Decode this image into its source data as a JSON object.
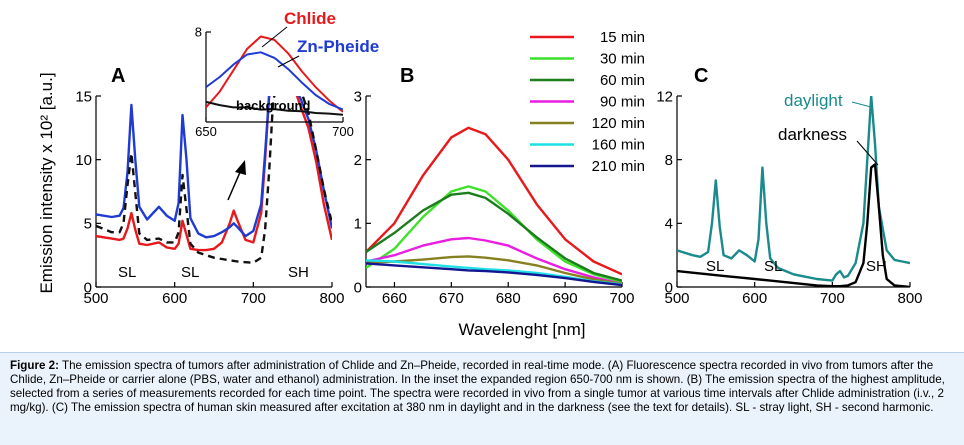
{
  "ylabel": "Emission intensity x 10² [a.u.]",
  "xlabel": "Wavelenght [nm]",
  "caption": {
    "label": "Figure 2:",
    "text": "The emission spectra of tumors after administration of Chlide and Zn–Pheide, recorded in real-time mode. (A) Fluorescence spectra recorded in vivo from tumors after the Chlide, Zn–Pheide or carrier alone (PBS, water and ethanol) administration. In the inset the expanded region 650-700 nm is shown. (B) The emission spectra of the highest amplitude, selected from a series of measurements recorded for each time point. The spectra were recorded in vivo from a single tumor at various time intervals after Chlide administration (i.v., 2 mg/kg). (C) The emission spectra of human skin measured after excitation at 380 nm in daylight and in the darkness (see the text for details). SL - stray light, SH - second harmonic."
  },
  "chart_data": [
    {
      "panel": "A",
      "type": "line",
      "xlim": [
        500,
        800
      ],
      "ylim": [
        0,
        15
      ],
      "xticks": [
        500,
        600,
        700,
        800
      ],
      "yticks": [
        0,
        5,
        10,
        15
      ],
      "annotations": [
        "SL",
        "SL",
        "SH"
      ],
      "series": [
        {
          "name": "Chlide",
          "color": "#e8191c",
          "style": "solid",
          "x": [
            500,
            520,
            530,
            535,
            540,
            545,
            550,
            555,
            565,
            580,
            590,
            600,
            605,
            610,
            615,
            620,
            630,
            640,
            650,
            660,
            670,
            675,
            680,
            690,
            700,
            710,
            715,
            720,
            725,
            730,
            740,
            750,
            760,
            770,
            780,
            790,
            800
          ],
          "y": [
            4.0,
            3.8,
            3.7,
            3.8,
            4.6,
            5.8,
            4.5,
            3.4,
            3.3,
            3.5,
            3.1,
            3.0,
            3.4,
            5.2,
            4.1,
            3.0,
            2.9,
            2.9,
            3.0,
            3.5,
            5.0,
            6.0,
            5.2,
            3.7,
            3.5,
            5.8,
            10,
            15,
            16,
            16,
            16,
            16,
            14.2,
            12.5,
            9.8,
            6.4,
            3.7
          ]
        },
        {
          "name": "Zn-Pheide",
          "color": "#1f3bd1",
          "style": "solid",
          "x": [
            500,
            520,
            530,
            535,
            540,
            545,
            550,
            555,
            565,
            580,
            590,
            600,
            605,
            610,
            615,
            620,
            630,
            640,
            650,
            660,
            670,
            675,
            680,
            690,
            700,
            710,
            715,
            720,
            725,
            730,
            740,
            750,
            760,
            770,
            780,
            790,
            800
          ],
          "y": [
            5.7,
            5.5,
            5.6,
            6.2,
            9.0,
            14.3,
            10.0,
            6.3,
            5.3,
            6.3,
            5.6,
            5.2,
            6.6,
            13.5,
            10.0,
            5.4,
            4.2,
            3.9,
            4.0,
            4.3,
            4.7,
            5.0,
            4.7,
            4.0,
            4.4,
            6.5,
            10.5,
            15,
            16,
            16,
            16,
            16,
            14.8,
            13.2,
            10.7,
            7.5,
            4.6
          ]
        },
        {
          "name": "background",
          "color": "#111111",
          "style": "dashed",
          "x": [
            500,
            520,
            530,
            535,
            540,
            545,
            550,
            555,
            565,
            580,
            590,
            600,
            605,
            610,
            615,
            620,
            630,
            640,
            650,
            660,
            670,
            680,
            690,
            700,
            710,
            715,
            720,
            725,
            730,
            740,
            750,
            760,
            770,
            780,
            790,
            800
          ],
          "y": [
            4.8,
            4.3,
            4.3,
            5.0,
            8.0,
            10.5,
            7.4,
            4.2,
            3.7,
            3.8,
            3.5,
            3.5,
            4.3,
            8.8,
            6.1,
            3.4,
            2.7,
            2.5,
            2.3,
            2.2,
            2.1,
            2.0,
            1.95,
            1.9,
            2.3,
            4.5,
            9.0,
            14.5,
            16,
            16,
            16,
            15.5,
            13.7,
            10.7,
            7.6,
            5.0
          ]
        }
      ],
      "inset": {
        "xlim": [
          650,
          700
        ],
        "ylim": [
          0,
          8
        ],
        "xticks": [
          650,
          700
        ],
        "yticks": [
          8
        ],
        "series": [
          {
            "name": "Chlide",
            "color": "#e8191c",
            "style": "solid",
            "x": [
              650,
              655,
              660,
              665,
              670,
              675,
              680,
              685,
              690,
              695,
              700
            ],
            "y": [
              1.3,
              2.7,
              4.6,
              6.5,
              7.6,
              7.3,
              6.1,
              4.5,
              3.1,
              1.9,
              0.9
            ]
          },
          {
            "name": "Zn-Pheide",
            "color": "#1f3bd1",
            "style": "solid",
            "x": [
              650,
              655,
              660,
              665,
              670,
              675,
              680,
              685,
              690,
              695,
              700
            ],
            "y": [
              3.1,
              4.0,
              5.1,
              6.0,
              6.2,
              5.7,
              4.7,
              3.5,
              2.4,
              1.6,
              1.1
            ]
          },
          {
            "name": "background",
            "color": "#111111",
            "style": "solid",
            "x": [
              650,
              655,
              660,
              665,
              670,
              675,
              680,
              685,
              690,
              695,
              700
            ],
            "y": [
              1.8,
              1.5,
              1.3,
              1.3,
              1.1,
              1.15,
              1.0,
              0.95,
              0.8,
              0.75,
              0.65
            ]
          }
        ],
        "label_background": "background"
      }
    },
    {
      "panel": "B",
      "type": "line",
      "xlim": [
        655,
        700
      ],
      "ylim": [
        0,
        3
      ],
      "xticks": [
        660,
        670,
        680,
        690,
        700
      ],
      "yticks": [
        0,
        1,
        2,
        3
      ],
      "legend": "top-right",
      "series": [
        {
          "name": "15 min",
          "color": "#e8191c",
          "x": [
            655,
            660,
            665,
            670,
            673,
            676,
            680,
            685,
            690,
            695,
            700
          ],
          "y": [
            0.55,
            1.0,
            1.75,
            2.35,
            2.5,
            2.4,
            2.0,
            1.3,
            0.75,
            0.4,
            0.2
          ]
        },
        {
          "name": "30 min",
          "color": "#3ee02c",
          "x": [
            655,
            660,
            665,
            670,
            673,
            676,
            680,
            685,
            690,
            695,
            700
          ],
          "y": [
            0.3,
            0.6,
            1.1,
            1.5,
            1.58,
            1.5,
            1.2,
            0.75,
            0.4,
            0.2,
            0.08
          ]
        },
        {
          "name": "60 min",
          "color": "#1c7d1c",
          "x": [
            655,
            660,
            665,
            670,
            673,
            676,
            680,
            685,
            690,
            695,
            700
          ],
          "y": [
            0.55,
            0.85,
            1.2,
            1.45,
            1.48,
            1.4,
            1.15,
            0.78,
            0.45,
            0.22,
            0.1
          ]
        },
        {
          "name": "90 min",
          "color": "#e81ee0",
          "x": [
            655,
            660,
            665,
            670,
            673,
            676,
            680,
            685,
            690,
            695,
            700
          ],
          "y": [
            0.4,
            0.5,
            0.65,
            0.75,
            0.77,
            0.73,
            0.65,
            0.45,
            0.28,
            0.15,
            0.05
          ]
        },
        {
          "name": "120 min",
          "color": "#868020",
          "x": [
            655,
            660,
            665,
            670,
            673,
            676,
            680,
            685,
            690,
            695,
            700
          ],
          "y": [
            0.38,
            0.4,
            0.43,
            0.47,
            0.48,
            0.46,
            0.42,
            0.34,
            0.22,
            0.12,
            0.05
          ]
        },
        {
          "name": "160 min",
          "color": "#1ee0e6",
          "x": [
            655,
            660,
            665,
            670,
            673,
            676,
            680,
            685,
            690,
            695,
            700
          ],
          "y": [
            0.42,
            0.4,
            0.36,
            0.32,
            0.3,
            0.28,
            0.26,
            0.22,
            0.16,
            0.09,
            0.04
          ]
        },
        {
          "name": "210 min",
          "color": "#14168f",
          "x": [
            655,
            660,
            665,
            670,
            673,
            676,
            680,
            685,
            690,
            695,
            700
          ],
          "y": [
            0.37,
            0.34,
            0.31,
            0.28,
            0.26,
            0.25,
            0.23,
            0.19,
            0.14,
            0.08,
            0.03
          ]
        }
      ]
    },
    {
      "panel": "C",
      "type": "line",
      "xlim": [
        500,
        800
      ],
      "ylim": [
        0,
        12
      ],
      "xticks": [
        500,
        600,
        700,
        800
      ],
      "yticks": [
        0,
        4,
        8,
        12
      ],
      "annotations": [
        "SL",
        "SL",
        "SH"
      ],
      "series": [
        {
          "name": "daylight",
          "color": "#1b8a8c",
          "x": [
            500,
            520,
            530,
            540,
            545,
            550,
            555,
            560,
            570,
            580,
            590,
            600,
            605,
            610,
            615,
            620,
            630,
            640,
            650,
            660,
            670,
            680,
            690,
            700,
            705,
            710,
            715,
            720,
            730,
            740,
            745,
            750,
            755,
            760,
            770,
            780,
            790,
            800
          ],
          "y": [
            2.3,
            2.0,
            1.9,
            2.2,
            4.0,
            6.7,
            3.8,
            2.0,
            1.8,
            2.3,
            2.0,
            1.6,
            3.0,
            7.5,
            4.0,
            1.8,
            1.2,
            1.0,
            0.8,
            0.7,
            0.6,
            0.5,
            0.45,
            0.4,
            0.8,
            1.0,
            0.6,
            0.7,
            1.5,
            4.0,
            8.0,
            12.0,
            9.0,
            5.0,
            2.3,
            1.7,
            1.6,
            1.5
          ]
        },
        {
          "name": "darkness",
          "color": "#000000",
          "x": [
            500,
            520,
            540,
            560,
            580,
            600,
            620,
            640,
            660,
            680,
            700,
            710,
            720,
            730,
            740,
            745,
            750,
            755,
            760,
            765,
            770,
            780,
            790,
            800
          ],
          "y": [
            1.0,
            0.9,
            0.8,
            0.7,
            0.6,
            0.5,
            0.4,
            0.3,
            0.2,
            0.1,
            0.05,
            0.05,
            0.1,
            0.3,
            1.5,
            4.0,
            7.5,
            7.7,
            5.0,
            2.0,
            0.5,
            0.1,
            0.05,
            0.0
          ]
        }
      ]
    }
  ]
}
